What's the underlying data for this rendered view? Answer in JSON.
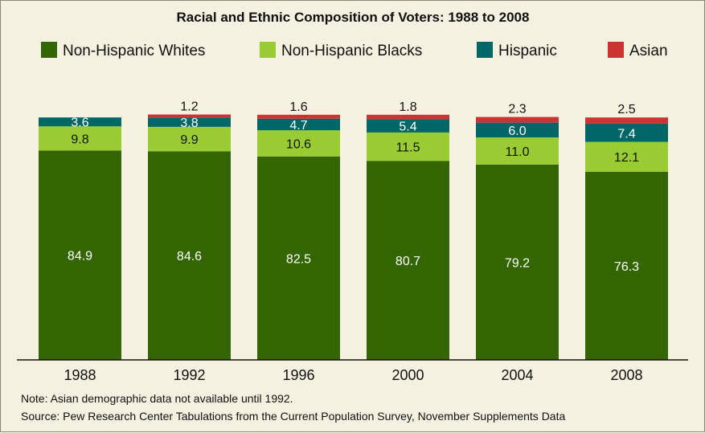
{
  "chart_data": {
    "type": "bar",
    "stacked": true,
    "title": "Racial and Ethnic Composition of Voters: 1988 to 2008",
    "categories": [
      "1988",
      "1992",
      "1996",
      "2000",
      "2004",
      "2008"
    ],
    "series": [
      {
        "name": "Non-Hispanic Whites",
        "color": "#336600",
        "label_color": "#ffffff",
        "values": [
          84.9,
          84.6,
          82.5,
          80.7,
          79.2,
          76.3
        ]
      },
      {
        "name": "Non-Hispanic Blacks",
        "color": "#99cc33",
        "label_color": "#111111",
        "values": [
          9.8,
          9.9,
          10.6,
          11.5,
          11.0,
          12.1
        ]
      },
      {
        "name": "Hispanic",
        "color": "#006666",
        "label_color": "#ffffff",
        "values": [
          3.6,
          3.8,
          4.7,
          5.4,
          6.0,
          7.4
        ]
      },
      {
        "name": "Asian",
        "color": "#cc3333",
        "label_color": "#111111",
        "values": [
          null,
          1.2,
          1.6,
          1.8,
          2.3,
          2.5
        ]
      }
    ],
    "ylim": [
      0,
      100
    ],
    "grid": false,
    "legend_position": "top"
  },
  "notes": [
    "Note: Asian demographic data not available until 1992.",
    "Source: Pew Research Center Tabulations from the Current Population Survey, November Supplements Data"
  ]
}
